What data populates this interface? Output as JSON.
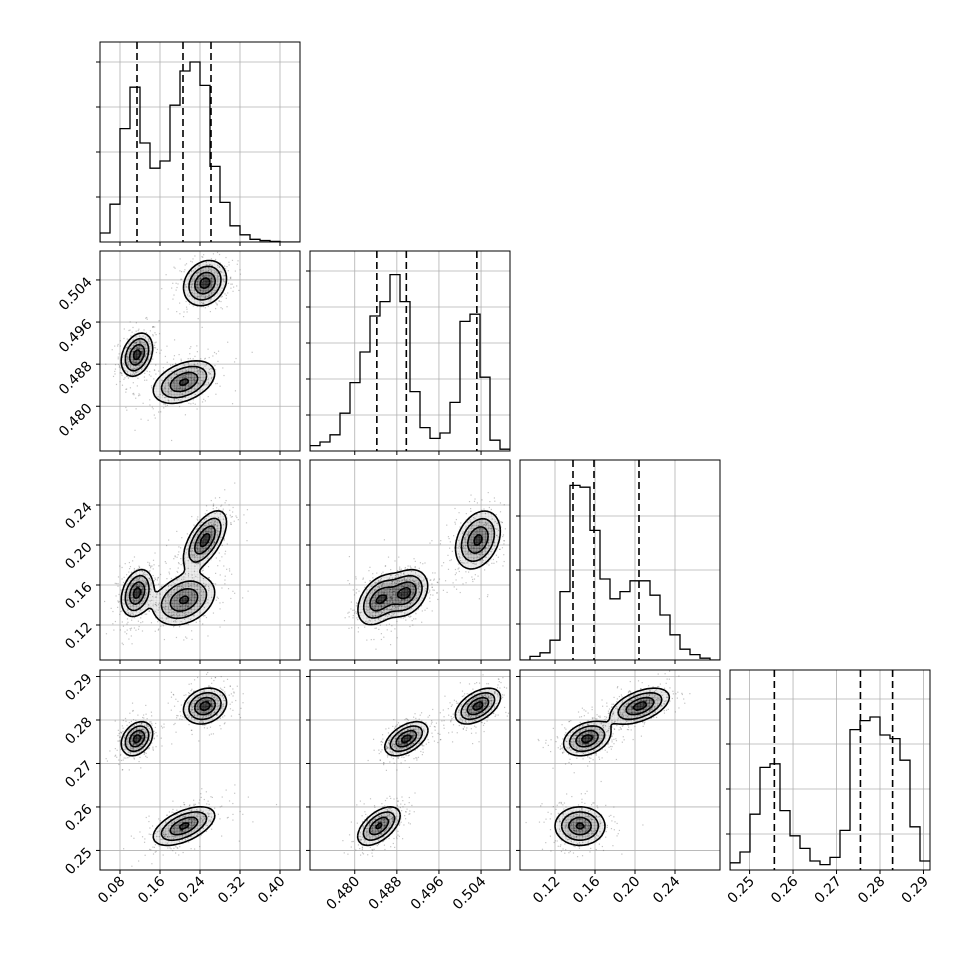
{
  "chart_data": {
    "type": "corner",
    "parameters": [
      {
        "range": [
          0.04,
          0.44
        ],
        "ticks": [
          0.08,
          0.16,
          0.24,
          0.32,
          0.4
        ],
        "tick_labels": [
          "0.08",
          "0.16",
          "0.24",
          "0.32",
          "0.40"
        ],
        "quantiles": [
          0.114,
          0.206,
          0.262
        ]
      },
      {
        "range": [
          0.4715,
          0.5095
        ],
        "ticks": [
          0.48,
          0.488,
          0.496,
          0.504
        ],
        "tick_labels": [
          "0.480",
          "0.488",
          "0.496",
          "0.504"
        ],
        "quantiles": [
          0.4842,
          0.4898,
          0.5032
        ]
      },
      {
        "range": [
          0.085,
          0.285
        ],
        "ticks": [
          0.12,
          0.16,
          0.2,
          0.24
        ],
        "tick_labels": [
          "0.12",
          "0.16",
          "0.20",
          "0.24"
        ],
        "quantiles": [
          0.138,
          0.159,
          0.204
        ]
      },
      {
        "range": [
          0.2455,
          0.2915
        ],
        "ticks": [
          0.25,
          0.26,
          0.27,
          0.28,
          0.29
        ],
        "tick_labels": [
          "0.25",
          "0.26",
          "0.27",
          "0.28",
          "0.29"
        ],
        "quantiles": [
          0.2557,
          0.2755,
          0.2829
        ]
      }
    ],
    "diag_hist_ticks": [
      [
        0.25,
        0.5,
        0.75,
        1.0
      ],
      [
        0.2,
        0.4,
        0.6,
        0.8,
        1.0
      ],
      [
        0.2,
        0.5,
        0.8
      ],
      [
        0.2,
        0.45,
        0.7,
        0.95
      ]
    ],
    "histograms": [
      {
        "bins": [
          0.04,
          0.06,
          0.08,
          0.1,
          0.12,
          0.14,
          0.16,
          0.18,
          0.2,
          0.22,
          0.24,
          0.26,
          0.28,
          0.3,
          0.32,
          0.34,
          0.36,
          0.38,
          0.4,
          0.42,
          0.44
        ],
        "counts": [
          0.05,
          0.21,
          0.63,
          0.86,
          0.55,
          0.41,
          0.45,
          0.76,
          0.95,
          1.0,
          0.87,
          0.42,
          0.22,
          0.09,
          0.04,
          0.015,
          0.008,
          0.003,
          0.0,
          0.0
        ]
      },
      {
        "bins": [
          0.4715,
          0.4734,
          0.4753,
          0.4772,
          0.4791,
          0.481,
          0.4829,
          0.4848,
          0.4867,
          0.4886,
          0.4905,
          0.4924,
          0.4943,
          0.4962,
          0.4981,
          0.5,
          0.5019,
          0.5038,
          0.5057,
          0.5076,
          0.5095
        ],
        "counts": [
          0.03,
          0.05,
          0.09,
          0.21,
          0.38,
          0.55,
          0.75,
          0.83,
          0.98,
          0.83,
          0.33,
          0.13,
          0.07,
          0.1,
          0.27,
          0.72,
          0.76,
          0.41,
          0.06,
          0.01
        ]
      },
      {
        "bins": [
          0.085,
          0.095,
          0.105,
          0.115,
          0.125,
          0.135,
          0.145,
          0.155,
          0.165,
          0.175,
          0.185,
          0.195,
          0.205,
          0.215,
          0.225,
          0.235,
          0.245,
          0.255,
          0.265,
          0.275,
          0.285
        ],
        "counts": [
          0.0,
          0.02,
          0.04,
          0.11,
          0.38,
          0.97,
          0.96,
          0.72,
          0.45,
          0.34,
          0.38,
          0.44,
          0.44,
          0.36,
          0.25,
          0.14,
          0.06,
          0.03,
          0.01,
          0.0
        ]
      },
      {
        "bins": [
          0.2455,
          0.2478,
          0.2501,
          0.2524,
          0.2547,
          0.257,
          0.2593,
          0.2616,
          0.2639,
          0.2662,
          0.2685,
          0.2708,
          0.2731,
          0.2754,
          0.2777,
          0.28,
          0.2823,
          0.2846,
          0.2869,
          0.2892,
          0.2915
        ],
        "counts": [
          0.04,
          0.1,
          0.31,
          0.57,
          0.59,
          0.33,
          0.19,
          0.12,
          0.05,
          0.03,
          0.07,
          0.22,
          0.78,
          0.83,
          0.85,
          0.75,
          0.73,
          0.61,
          0.24,
          0.05
        ]
      }
    ],
    "modes": [
      {
        "mean": [
          0.114,
          0.4898,
          0.152,
          0.2757
        ],
        "sd": [
          0.016,
          0.0021,
          0.012,
          0.002
        ],
        "weight": 0.34,
        "rho": [
          [
            1,
            0.3,
            0.3,
            0.3
          ],
          [
            0.3,
            1,
            0.3,
            0.5
          ],
          [
            0.3,
            0.3,
            1,
            0.3
          ],
          [
            0.3,
            0.5,
            0.3,
            1
          ]
        ]
      },
      {
        "mean": [
          0.208,
          0.4846,
          0.145,
          0.2556
        ],
        "sd": [
          0.032,
          0.0021,
          0.013,
          0.0023
        ],
        "weight": 0.32,
        "rho": [
          [
            1,
            0.4,
            0.3,
            0.55
          ],
          [
            0.4,
            1,
            0.4,
            0.55
          ],
          [
            0.3,
            0.4,
            1,
            0.0
          ],
          [
            0.55,
            0.55,
            0.0,
            1
          ]
        ]
      },
      {
        "mean": [
          0.25,
          0.5034,
          0.205,
          0.2832
        ],
        "sd": [
          0.022,
          0.0022,
          0.015,
          0.0021
        ],
        "weight": 0.34,
        "rho": [
          [
            1,
            0.2,
            0.6,
            0.2
          ],
          [
            0.2,
            1,
            0.3,
            0.5
          ],
          [
            0.6,
            0.3,
            1,
            0.5
          ],
          [
            0.2,
            0.5,
            0.5,
            1
          ]
        ]
      }
    ],
    "contour_levels": [
      0.15,
      0.35,
      0.65,
      0.9
    ],
    "grid": true,
    "legend": "none"
  }
}
